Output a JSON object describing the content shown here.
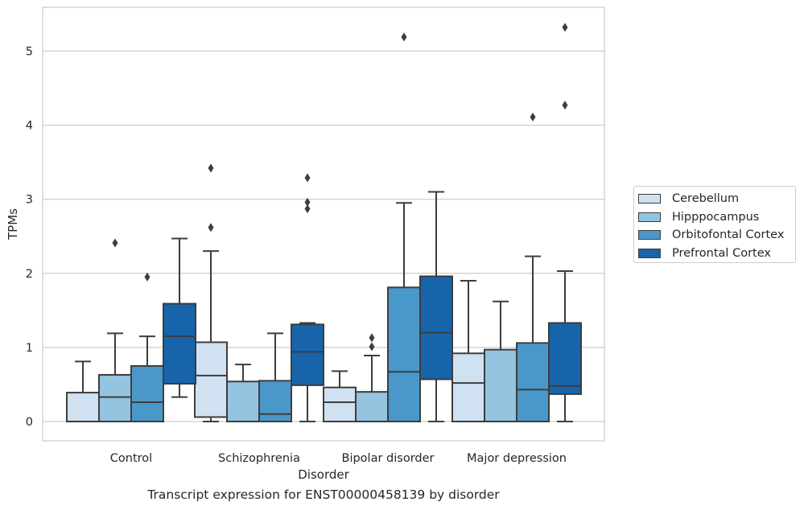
{
  "chart_data": {
    "type": "box",
    "xlabel": "Disorder",
    "ylabel": "TPMs",
    "caption": "Transcript expression for ENST00000458139 by disorder",
    "categories": [
      "Control",
      "Schizophrenia",
      "Bipolar disorder",
      "Major depression"
    ],
    "ylim": [
      -0.25,
      5.6
    ],
    "yticks": [
      0,
      1,
      2,
      3,
      4,
      5
    ],
    "grid": "horizontal",
    "legend_position": "right",
    "series": [
      {
        "name": "Cerebellum",
        "color": "#d0e1f2",
        "boxes": [
          {
            "whislo": 0,
            "q1": 0,
            "med": 0,
            "q3": 0.39,
            "whishi": 0.81,
            "fliers": []
          },
          {
            "whislo": 0,
            "q1": 0.06,
            "med": 0.62,
            "q3": 1.07,
            "whishi": 2.3,
            "fliers": [
              2.62,
              3.42
            ]
          },
          {
            "whislo": 0,
            "q1": 0,
            "med": 0.26,
            "q3": 0.46,
            "whishi": 0.68,
            "fliers": []
          },
          {
            "whislo": 0,
            "q1": 0,
            "med": 0.52,
            "q3": 0.92,
            "whishi": 1.9,
            "fliers": []
          }
        ]
      },
      {
        "name": "Hipppocampus",
        "color": "#94c4df",
        "boxes": [
          {
            "whislo": 0,
            "q1": 0,
            "med": 0.33,
            "q3": 0.63,
            "whishi": 1.19,
            "fliers": [
              2.41
            ]
          },
          {
            "whislo": 0,
            "q1": 0,
            "med": 0,
            "q3": 0.54,
            "whishi": 0.77,
            "fliers": []
          },
          {
            "whislo": 0,
            "q1": 0,
            "med": 0,
            "q3": 0.4,
            "whishi": 0.89,
            "fliers": [
              1.01,
              1.13
            ]
          },
          {
            "whislo": 0,
            "q1": 0,
            "med": 0,
            "q3": 0.97,
            "whishi": 1.62,
            "fliers": []
          }
        ]
      },
      {
        "name": "Orbitofontal Cortex",
        "color": "#4a98c9",
        "boxes": [
          {
            "whislo": 0,
            "q1": 0,
            "med": 0.26,
            "q3": 0.75,
            "whishi": 1.15,
            "fliers": [
              1.95
            ]
          },
          {
            "whislo": 0,
            "q1": 0,
            "med": 0.1,
            "q3": 0.55,
            "whishi": 1.19,
            "fliers": []
          },
          {
            "whislo": 0,
            "q1": 0,
            "med": 0.67,
            "q3": 1.81,
            "whishi": 2.95,
            "fliers": [
              5.19
            ]
          },
          {
            "whislo": 0,
            "q1": 0,
            "med": 0.43,
            "q3": 1.06,
            "whishi": 2.23,
            "fliers": [
              4.11
            ]
          }
        ]
      },
      {
        "name": "Prefrontal Cortex",
        "color": "#1764ab",
        "boxes": [
          {
            "whislo": 0.33,
            "q1": 0.51,
            "med": 1.15,
            "q3": 1.59,
            "whishi": 2.47,
            "fliers": []
          },
          {
            "whislo": 0,
            "q1": 0.49,
            "med": 0.94,
            "q3": 1.31,
            "whishi": 1.33,
            "fliers": [
              2.87,
              2.96,
              3.29
            ]
          },
          {
            "whislo": 0,
            "q1": 0.57,
            "med": 1.2,
            "q3": 1.96,
            "whishi": 3.1,
            "fliers": []
          },
          {
            "whislo": 0,
            "q1": 0.37,
            "med": 0.48,
            "q3": 1.33,
            "whishi": 2.03,
            "fliers": [
              4.27,
              5.32
            ]
          }
        ]
      }
    ]
  }
}
